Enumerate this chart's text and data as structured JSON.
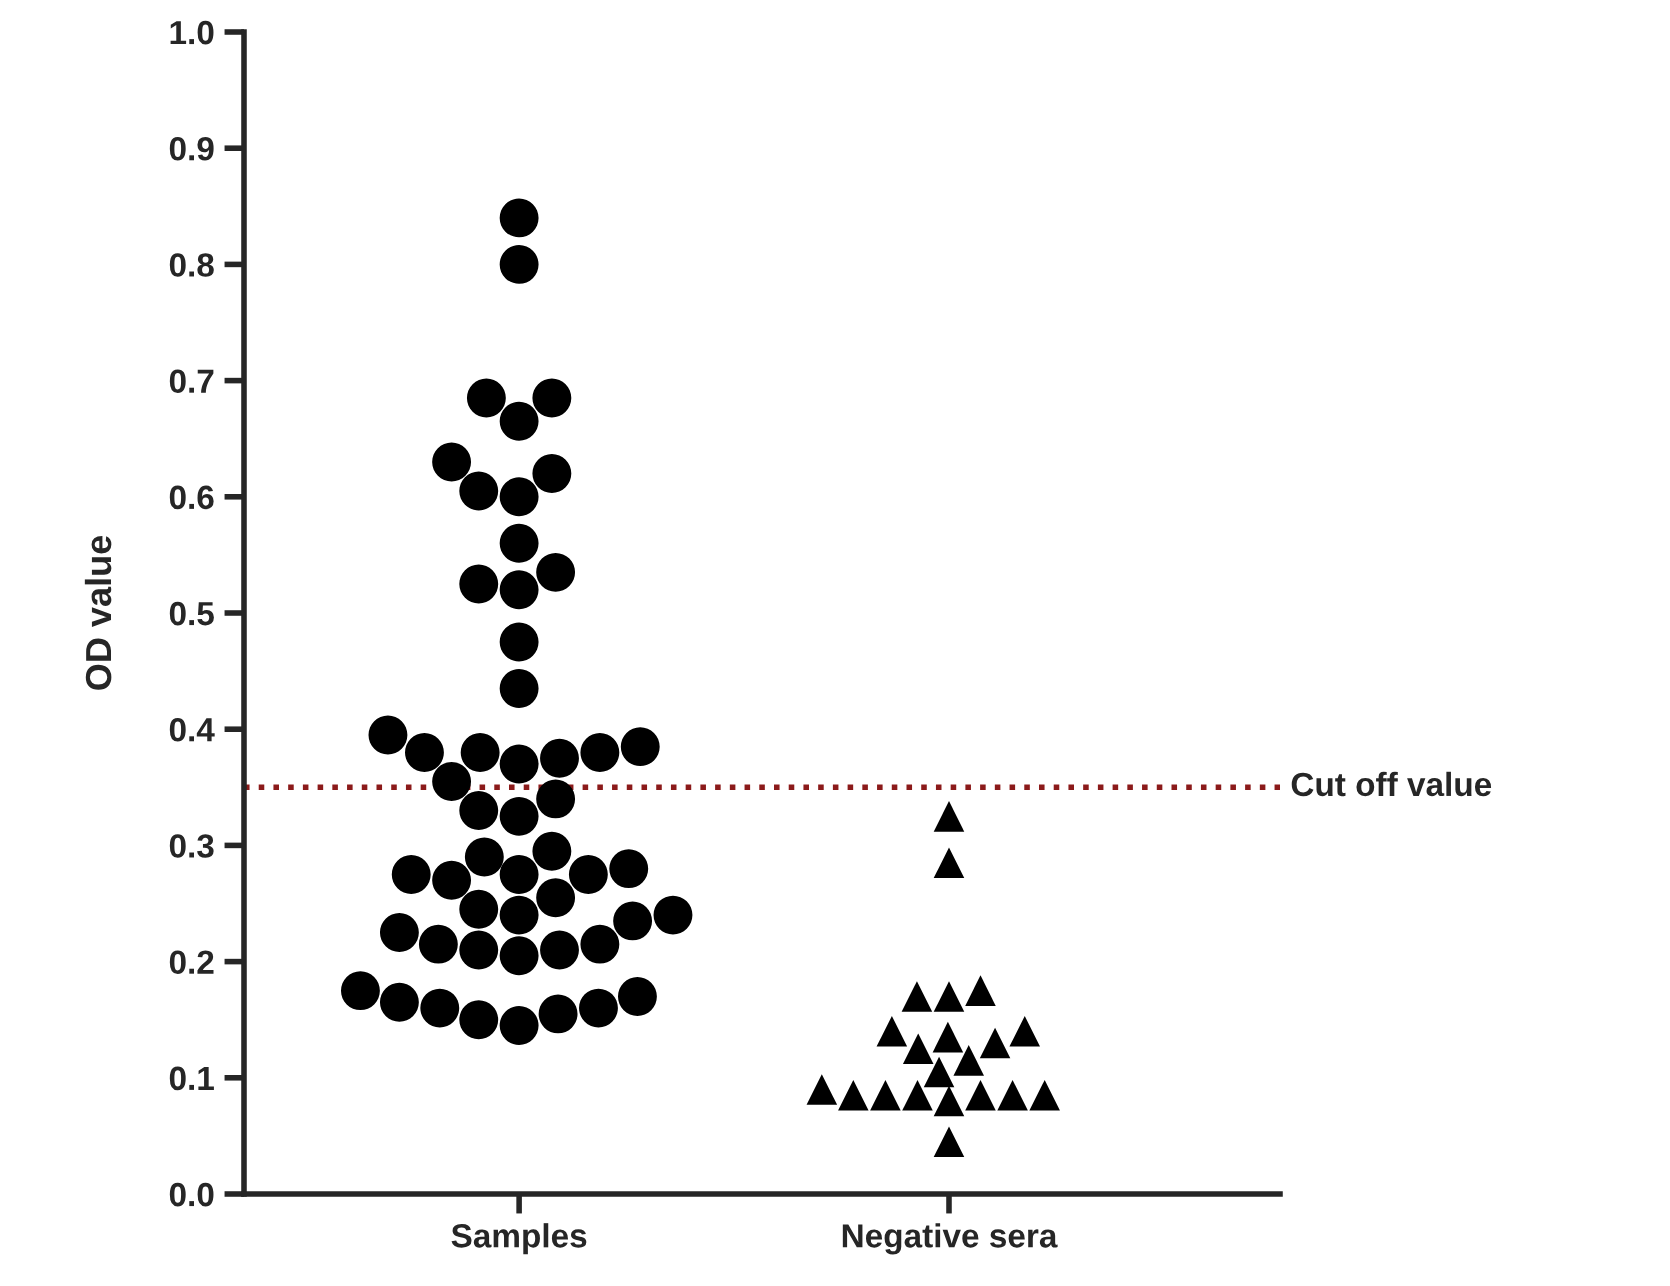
{
  "chart_data": {
    "type": "scatter",
    "ylabel": "OD value",
    "categories": [
      "Samples",
      "Negative sera"
    ],
    "series": [
      {
        "x": [
          "Samples",
          "Samples",
          "Samples",
          "Samples",
          "Samples",
          "Samples",
          "Samples",
          "Samples",
          "Samples",
          "Samples",
          "Samples",
          "Samples",
          "Samples",
          "Samples",
          "Samples",
          "Samples",
          "Samples",
          "Samples",
          "Samples",
          "Samples",
          "Samples",
          "Samples",
          "Samples",
          "Samples",
          "Samples",
          "Samples",
          "Samples",
          "Samples",
          "Samples",
          "Samples",
          "Samples",
          "Samples",
          "Samples",
          "Samples",
          "Samples",
          "Samples",
          "Samples",
          "Samples",
          "Samples",
          "Samples",
          "Samples",
          "Samples",
          "Samples",
          "Samples",
          "Samples",
          "Samples",
          "Samples",
          "Samples",
          "Samples",
          "Samples",
          "Samples",
          "Samples"
        ],
        "values": [
          0.84,
          0.8,
          0.685,
          0.685,
          0.665,
          0.63,
          0.62,
          0.605,
          0.6,
          0.56,
          0.535,
          0.525,
          0.52,
          0.475,
          0.435,
          0.395,
          0.385,
          0.38,
          0.38,
          0.38,
          0.375,
          0.37,
          0.355,
          0.34,
          0.33,
          0.325,
          0.295,
          0.29,
          0.28,
          0.275,
          0.275,
          0.275,
          0.27,
          0.255,
          0.245,
          0.24,
          0.24,
          0.235,
          0.225,
          0.215,
          0.215,
          0.21,
          0.21,
          0.205,
          0.175,
          0.17,
          0.165,
          0.16,
          0.16,
          0.155,
          0.15,
          0.145
        ],
        "color": "#000000",
        "marker": "circle"
      },
      {
        "x": [
          "Negative sera",
          "Negative sera",
          "Negative sera",
          "Negative sera",
          "Negative sera",
          "Negative sera",
          "Negative sera",
          "Negative sera",
          "Negative sera",
          "Negative sera",
          "Negative sera",
          "Negative sera",
          "Negative sera",
          "Negative sera",
          "Negative sera",
          "Negative sera",
          "Negative sera",
          "Negative sera",
          "Negative sera",
          "Negative sera",
          "Negative sera"
        ],
        "values": [
          0.325,
          0.285,
          0.175,
          0.17,
          0.17,
          0.14,
          0.14,
          0.135,
          0.13,
          0.125,
          0.115,
          0.105,
          0.09,
          0.085,
          0.085,
          0.085,
          0.085,
          0.085,
          0.085,
          0.08,
          0.045
        ],
        "color": "#000000",
        "marker": "triangle"
      }
    ],
    "ylim": [
      0,
      1
    ],
    "yticks": [
      {
        "value": 0,
        "label": "0.0"
      },
      {
        "value": 0.1,
        "label": "0.1"
      },
      {
        "value": 0.2,
        "label": "0.2"
      },
      {
        "value": 0.3,
        "label": "0.3"
      },
      {
        "value": 0.4,
        "label": "0.4"
      },
      {
        "value": 0.5,
        "label": "0.5"
      },
      {
        "value": 0.6,
        "label": "0.6"
      },
      {
        "value": 0.7,
        "label": "0.7"
      },
      {
        "value": 0.8,
        "label": "0.8"
      },
      {
        "value": 0.9,
        "label": "0.9"
      },
      {
        "value": 1,
        "label": "1.0"
      }
    ],
    "ref_lines": [
      {
        "axis": "y",
        "value": 0.35,
        "label": "Cut off value",
        "color": "#8b1a1a",
        "line_style": "dotted"
      }
    ],
    "grid": false,
    "legend": false
  }
}
